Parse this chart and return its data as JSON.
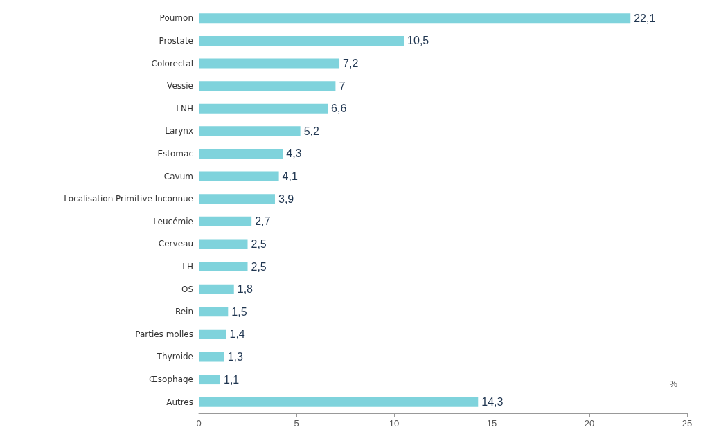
{
  "chart_data": {
    "type": "bar",
    "orientation": "horizontal",
    "xlabel": "%",
    "categories": [
      "Poumon",
      "Prostate",
      "Colorectal",
      "Vessie",
      "LNH",
      "Larynx",
      "Estomac",
      "Cavum",
      "Localisation Primitive Inconnue",
      "Leucémie",
      "Cerveau",
      "LH",
      "OS",
      "Rein",
      "Parties molles",
      "Thyroide",
      "Œsophage",
      "Autres"
    ],
    "values": [
      22.1,
      10.5,
      7.2,
      7,
      6.6,
      5.2,
      4.3,
      4.1,
      3.9,
      2.7,
      2.5,
      2.5,
      1.8,
      1.5,
      1.4,
      1.3,
      1.1,
      14.3
    ],
    "value_labels": [
      "22,1",
      "10,5",
      "7,2",
      "7",
      "6,6",
      "5,2",
      "4,3",
      "4,1",
      "3,9",
      "2,7",
      "2,5",
      "2,5",
      "1,8",
      "1,5",
      "1,4",
      "1,3",
      "1,1",
      "14,3"
    ],
    "color": "#7fd3dc",
    "xlim": [
      0,
      25
    ],
    "xticks": [
      0,
      5,
      10,
      15,
      20,
      25
    ],
    "grid": false
  }
}
